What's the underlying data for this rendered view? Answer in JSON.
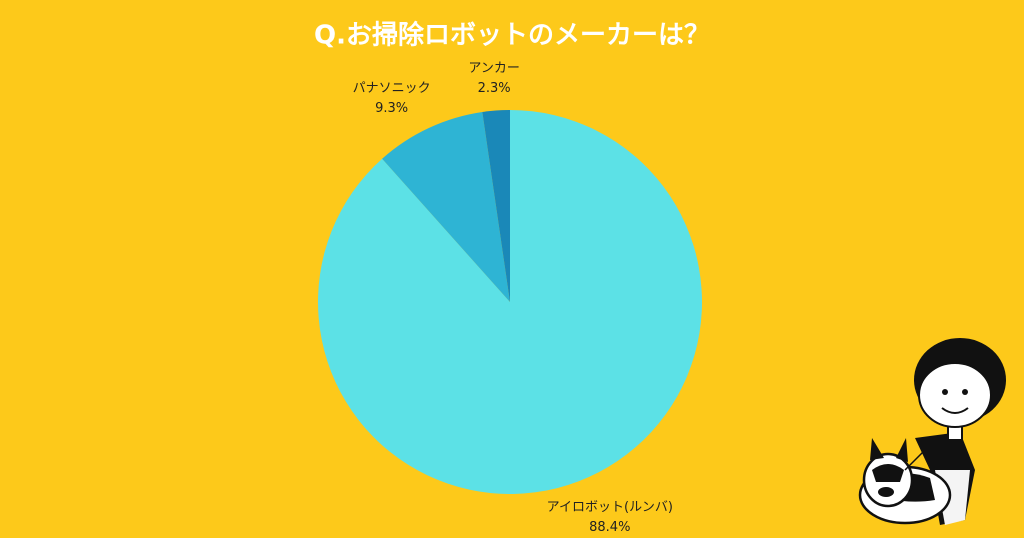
{
  "chart_data": {
    "type": "pie",
    "title": "Q.お掃除ロボットのメーカーは？",
    "categories": [
      "アイロボット(ルンバ)",
      "パナソニック",
      "アンカー"
    ],
    "values": [
      88.4,
      9.3,
      2.3
    ],
    "value_labels": [
      "88.4%",
      "9.3%",
      "2.3%"
    ],
    "colors": [
      "#5ce1e6",
      "#2eb4d4",
      "#1a88b8"
    ]
  }
}
